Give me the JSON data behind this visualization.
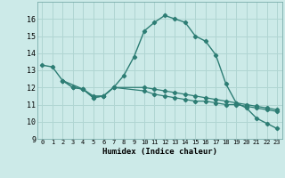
{
  "xlabel": "Humidex (Indice chaleur)",
  "bg_color": "#cceae8",
  "grid_color": "#b0d5d2",
  "line_color": "#2d7d74",
  "xlim": [
    -0.5,
    23.5
  ],
  "ylim": [
    9,
    17
  ],
  "xticks": [
    0,
    1,
    2,
    3,
    4,
    5,
    6,
    7,
    8,
    9,
    10,
    11,
    12,
    13,
    14,
    15,
    16,
    17,
    18,
    19,
    20,
    21,
    22,
    23
  ],
  "yticks": [
    9,
    10,
    11,
    12,
    13,
    14,
    15,
    16
  ],
  "series1_x": [
    0,
    1,
    2,
    4,
    5,
    6,
    7,
    8,
    9,
    10,
    11,
    12,
    13,
    14,
    15,
    16,
    17,
    18,
    19,
    20,
    21,
    22,
    23
  ],
  "series1_y": [
    13.3,
    13.2,
    12.4,
    11.9,
    11.5,
    11.5,
    12.0,
    12.7,
    13.8,
    15.3,
    15.8,
    16.2,
    16.0,
    15.8,
    15.0,
    14.7,
    13.9,
    12.2,
    11.1,
    10.8,
    10.2,
    9.9,
    9.6
  ],
  "series2_x": [
    2,
    3,
    4,
    5,
    6,
    7,
    10,
    11,
    12,
    13,
    14,
    15,
    16,
    17,
    18,
    19,
    20,
    21,
    22,
    23
  ],
  "series2_y": [
    12.4,
    12.0,
    11.9,
    11.4,
    11.5,
    12.0,
    11.8,
    11.6,
    11.5,
    11.4,
    11.3,
    11.2,
    11.2,
    11.1,
    11.0,
    11.0,
    10.9,
    10.8,
    10.7,
    10.6
  ],
  "series3_x": [
    2,
    3,
    4,
    5,
    6,
    7,
    10,
    11,
    12,
    13,
    14,
    15,
    16,
    17,
    18,
    19,
    20,
    21,
    22,
    23
  ],
  "series3_y": [
    12.4,
    12.0,
    11.9,
    11.4,
    11.5,
    12.0,
    12.0,
    11.9,
    11.8,
    11.7,
    11.6,
    11.5,
    11.4,
    11.3,
    11.2,
    11.1,
    11.0,
    10.9,
    10.8,
    10.7
  ]
}
